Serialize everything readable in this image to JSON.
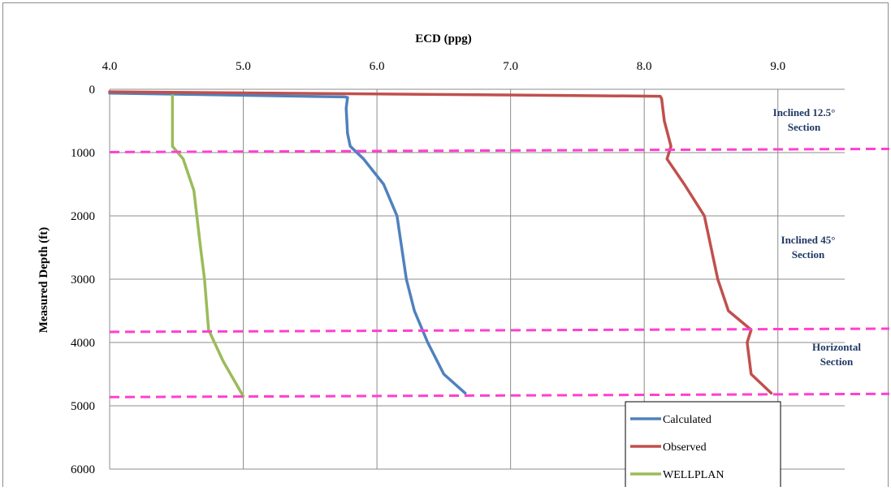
{
  "chart_data": {
    "type": "line",
    "xlabel": "ECD (ppg)",
    "ylabel": "Measured Depth (ft)",
    "xlim": [
      4.0,
      9.5
    ],
    "ylim": [
      0,
      6000
    ],
    "y_inverted": true,
    "x_axis_position": "top",
    "x_ticks": [
      "4.0",
      "5.0",
      "6.0",
      "7.0",
      "8.0",
      "9.0"
    ],
    "y_ticks": [
      "0",
      "1000",
      "2000",
      "3000",
      "4000",
      "5000",
      "6000"
    ],
    "grid": true,
    "legend_position": "bottom-right",
    "series": [
      {
        "name": "Calculated",
        "color": "#4f81bd",
        "points": [
          [
            4.0,
            60
          ],
          [
            5.76,
            120
          ],
          [
            5.78,
            130
          ],
          [
            5.77,
            300
          ],
          [
            5.78,
            700
          ],
          [
            5.8,
            900
          ],
          [
            5.9,
            1100
          ],
          [
            6.05,
            1500
          ],
          [
            6.15,
            2000
          ],
          [
            6.22,
            3000
          ],
          [
            6.28,
            3500
          ],
          [
            6.38,
            4000
          ],
          [
            6.5,
            4500
          ],
          [
            6.66,
            4800
          ]
        ]
      },
      {
        "name": "Observed",
        "color": "#c0504d",
        "points": [
          [
            4.0,
            40
          ],
          [
            8.12,
            110
          ],
          [
            8.13,
            150
          ],
          [
            8.15,
            500
          ],
          [
            8.2,
            900
          ],
          [
            8.17,
            1100
          ],
          [
            8.3,
            1500
          ],
          [
            8.45,
            2000
          ],
          [
            8.55,
            3000
          ],
          [
            8.63,
            3500
          ],
          [
            8.8,
            3800
          ],
          [
            8.77,
            4000
          ],
          [
            8.8,
            4500
          ],
          [
            8.95,
            4800
          ]
        ]
      },
      {
        "name": "WELLPLAN",
        "color": "#9bbb59",
        "points": [
          [
            4.47,
            100
          ],
          [
            4.47,
            500
          ],
          [
            4.47,
            900
          ],
          [
            4.55,
            1100
          ],
          [
            4.63,
            1600
          ],
          [
            4.68,
            2500
          ],
          [
            4.71,
            3000
          ],
          [
            4.74,
            3800
          ],
          [
            4.85,
            4300
          ],
          [
            5.0,
            4850
          ]
        ]
      }
    ],
    "reference_lines": [
      {
        "y": 980,
        "color": "#ff3fd0",
        "style": "dashed"
      },
      {
        "y": 3820,
        "color": "#ff3fd0",
        "style": "dashed"
      },
      {
        "y": 4850,
        "color": "#ff3fd0",
        "style": "dashed"
      }
    ],
    "annotations": [
      {
        "lines": [
          "Inclined 12.5°",
          "Section"
        ]
      },
      {
        "lines": [
          "Inclined 45°",
          "Section"
        ]
      },
      {
        "lines": [
          "Horizontal",
          "Section"
        ]
      }
    ]
  }
}
